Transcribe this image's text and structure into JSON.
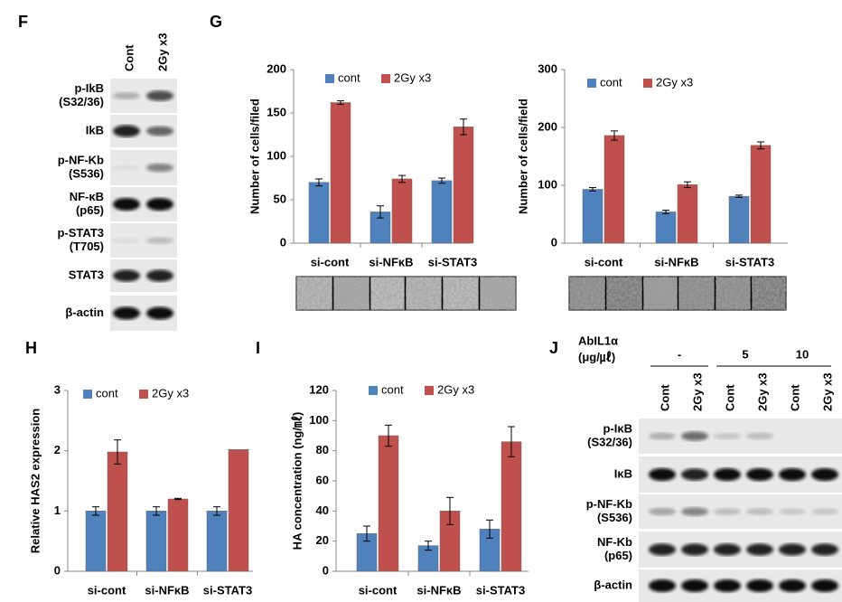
{
  "panel_letters": [
    "F",
    "G",
    "H",
    "I",
    "J"
  ],
  "blot_f": {
    "columns": [
      "Cont",
      "2Gy x3"
    ],
    "rows": [
      [
        "p-IkB",
        "(S32/36)"
      ],
      [
        "IkB"
      ],
      [
        "p-NF-Kb",
        "(S536)"
      ],
      [
        "NF-κB",
        "(p65)"
      ],
      [
        "p-STAT3",
        "(T705)"
      ],
      [
        "STAT3"
      ],
      [
        "β-actin"
      ]
    ]
  },
  "blot_j": {
    "treatment": [
      "AbIL1α",
      "(μg/㎕)"
    ],
    "doses": [
      "-",
      "5",
      "10"
    ],
    "columns": [
      "Cont",
      "2Gy x3",
      "Cont",
      "2Gy x3",
      "Cont",
      "2Gy x3"
    ],
    "rows": [
      [
        "p-IκB",
        "(S32/36)"
      ],
      [
        "IκB"
      ],
      [
        "p-NF-Kb",
        "(S536)"
      ],
      [
        "NF-Kb",
        "(p65)"
      ],
      [
        "β-actin"
      ]
    ]
  },
  "chart_data": [
    {
      "type": "bar",
      "ylabel": "Number  of  cells/filed",
      "categories": [
        "si-cont",
        "si-NFκB",
        "si-STAT3"
      ],
      "series": [
        {
          "name": "cont",
          "color": "#4f81bd",
          "values": [
            70,
            36,
            72
          ],
          "errors": [
            4,
            7,
            3
          ]
        },
        {
          "name": "2Gy x3",
          "color": "#c0504d",
          "values": [
            162,
            74,
            134
          ],
          "errors": [
            2,
            4,
            9
          ]
        }
      ],
      "ylim": [
        0,
        200
      ],
      "yticks": [
        0,
        50,
        100,
        150,
        200
      ]
    },
    {
      "type": "bar",
      "ylabel": "Number  of  cells/field",
      "categories": [
        "si-cont",
        "si-NFκB",
        "si-STAT3"
      ],
      "series": [
        {
          "name": "cont",
          "color": "#4f81bd",
          "values": [
            93,
            54,
            81
          ],
          "errors": [
            3,
            3,
            2
          ]
        },
        {
          "name": "2Gy x3",
          "color": "#c0504d",
          "values": [
            186,
            101,
            169
          ],
          "errors": [
            8,
            5,
            6
          ]
        }
      ],
      "ylim": [
        0,
        300
      ],
      "yticks": [
        0,
        100,
        200,
        300
      ]
    },
    {
      "type": "bar",
      "ylabel": "Relative HAS2  expression",
      "categories": [
        "si-cont",
        "si-NFκB",
        "si-STAT3"
      ],
      "series": [
        {
          "name": "cont",
          "color": "#4f81bd",
          "values": [
            1,
            1,
            1
          ],
          "errors": [
            0.07,
            0.07,
            0.07
          ]
        },
        {
          "name": "2Gy x3",
          "color": "#c0504d",
          "values": [
            1.98,
            1.2,
            2.02
          ],
          "errors": [
            0.2,
            0.01,
            null
          ]
        }
      ],
      "ylim": [
        0,
        3
      ],
      "yticks": [
        0,
        1,
        2,
        3
      ]
    },
    {
      "type": "bar",
      "ylabel": "HA concentration  (ng/㎖)",
      "categories": [
        "si-cont",
        "si-NFκB",
        "si-STAT3"
      ],
      "series": [
        {
          "name": "cont",
          "color": "#4f81bd",
          "values": [
            25,
            17,
            28
          ],
          "errors": [
            5,
            3,
            6
          ]
        },
        {
          "name": "2Gy x3",
          "color": "#c0504d",
          "values": [
            90,
            40,
            86
          ],
          "errors": [
            7,
            9,
            10
          ]
        }
      ],
      "ylim": [
        0,
        120
      ],
      "yticks": [
        0,
        20,
        40,
        60,
        80,
        100,
        120
      ]
    }
  ]
}
